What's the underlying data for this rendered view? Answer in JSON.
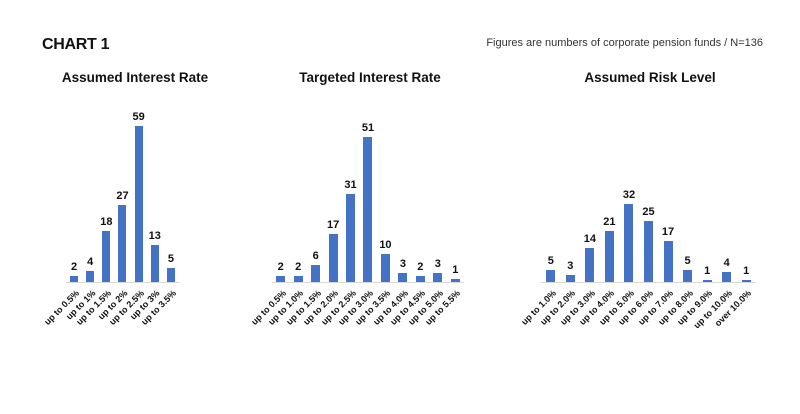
{
  "header": {
    "title": "CHART 1",
    "note": "Figures are numbers of corporate pension funds / N=136"
  },
  "colors": {
    "bar": "#4472C4",
    "baseline": "#D9D9D9",
    "text": "#111111"
  },
  "chart_data": [
    {
      "type": "bar",
      "title": "Assumed Interest Rate",
      "categories": [
        "up to 0.5%",
        "up to 1%",
        "up to 1.5%",
        "up to 2%",
        "up to 2.5%",
        "up to 3%",
        "up to 3.5%"
      ],
      "values": [
        2,
        4,
        18,
        27,
        59,
        13,
        5
      ],
      "xlabel": "",
      "ylabel": "",
      "ylim": [
        0,
        60
      ],
      "grid": false,
      "legend": "none",
      "data_labels": true
    },
    {
      "type": "bar",
      "title": "Targeted Interest Rate",
      "categories": [
        "up to 0.5%",
        "up to 1.0%",
        "up to 1.5%",
        "up to 2.0%",
        "up to 2.5%",
        "up to 3.0%",
        "up to 3.5%",
        "up to 4.0%",
        "up to 4.5%",
        "up to 5.0%",
        "up to 5.5%"
      ],
      "values": [
        2,
        2,
        6,
        17,
        31,
        51,
        10,
        3,
        2,
        3,
        1
      ],
      "xlabel": "",
      "ylabel": "",
      "ylim": [
        0,
        60
      ],
      "grid": false,
      "legend": "none",
      "data_labels": true
    },
    {
      "type": "bar",
      "title": "Assumed Risk Level",
      "categories": [
        "up to 1.0%",
        "up to 2.0%",
        "up to 3.0%",
        "up to 4.0%",
        "up to 5.0%",
        "up to 6.0%",
        "up to 7.0%",
        "up to 8.0%",
        "up to 9.0%",
        "up to 10.0%",
        "over 10.0%"
      ],
      "values": [
        5,
        3,
        14,
        21,
        32,
        25,
        17,
        5,
        1,
        4,
        1
      ],
      "xlabel": "",
      "ylabel": "",
      "ylim": [
        0,
        70
      ],
      "grid": false,
      "legend": "none",
      "data_labels": true
    }
  ]
}
